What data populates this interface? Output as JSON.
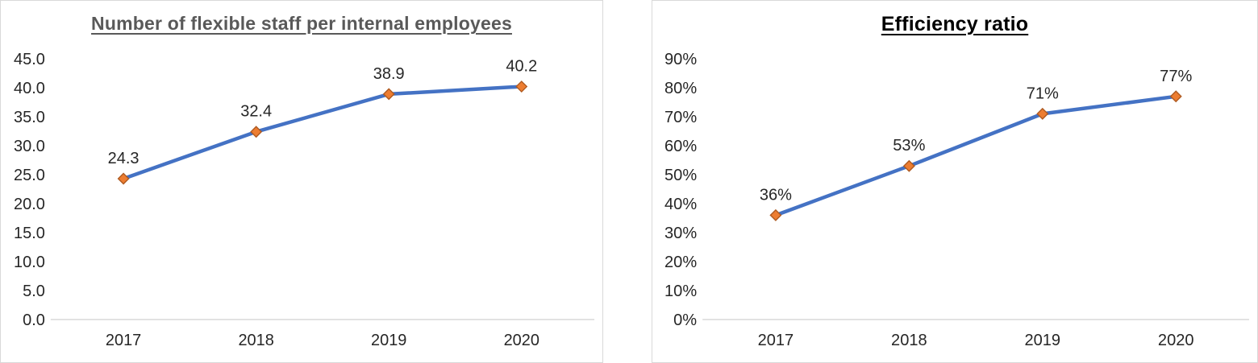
{
  "chart_data": [
    {
      "type": "line",
      "title": "Number of flexible staff per internal employees",
      "title_color": "#595959",
      "categories": [
        "2017",
        "2018",
        "2019",
        "2020"
      ],
      "values": [
        24.3,
        32.4,
        38.9,
        40.2
      ],
      "data_labels": [
        "24.3",
        "32.4",
        "38.9",
        "40.2"
      ],
      "yticks": [
        "45.0",
        "40.0",
        "35.0",
        "30.0",
        "25.0",
        "20.0",
        "15.0",
        "10.0",
        "5.0",
        "0.0"
      ],
      "ylim": [
        0,
        45
      ],
      "ystep": 5,
      "xlabel": "",
      "ylabel": "",
      "grid": false,
      "legend": "none",
      "marker_shape": "diamond"
    },
    {
      "type": "line",
      "title": "Efficiency ratio",
      "title_color": "#000000",
      "categories": [
        "2017",
        "2018",
        "2019",
        "2020"
      ],
      "values": [
        36,
        53,
        71,
        77
      ],
      "data_labels": [
        "36%",
        "53%",
        "71%",
        "77%"
      ],
      "yticks": [
        "90%",
        "80%",
        "70%",
        "60%",
        "50%",
        "40%",
        "30%",
        "20%",
        "10%",
        "0%"
      ],
      "ylim": [
        0,
        90
      ],
      "ystep": 10,
      "xlabel": "",
      "ylabel": "",
      "grid": false,
      "legend": "none",
      "marker_shape": "diamond"
    }
  ],
  "colors": {
    "line": "#4472C4",
    "marker_fill": "#ED7D31",
    "marker_stroke": "#AE5A21",
    "axis_line": "#D9D9D9",
    "tick_text": "#262626",
    "panel_border": "#D9D9D9",
    "background": "#FFFFFF"
  }
}
